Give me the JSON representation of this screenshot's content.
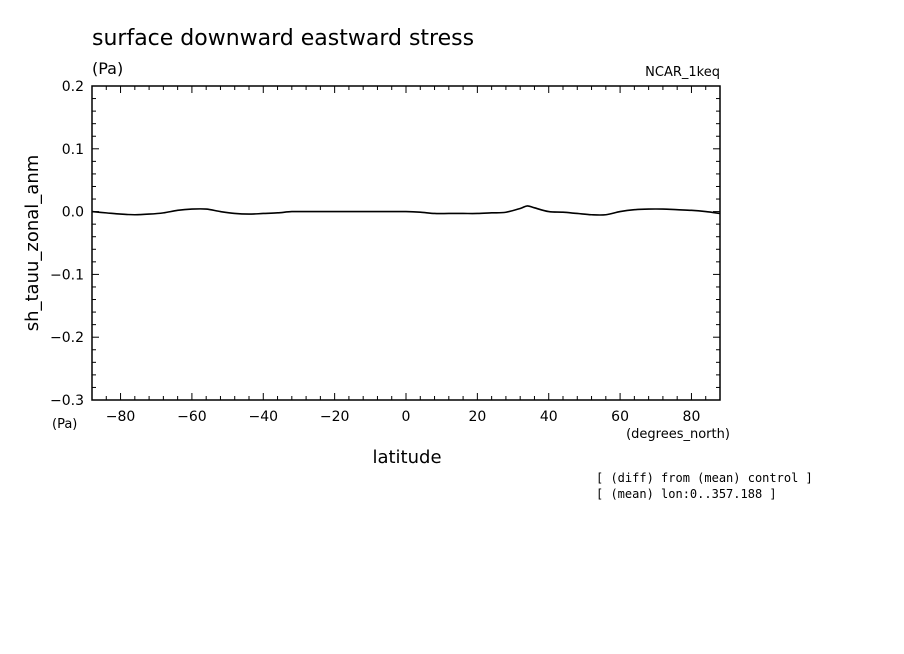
{
  "chart_data": {
    "type": "line",
    "title": "surface downward eastward stress",
    "title_units": "(Pa)",
    "model_label": "NCAR_1keq",
    "ylabel": "sh_tauu_zonal_anm",
    "ylabel_units": "(Pa)",
    "xlabel": "latitude",
    "xlabel_units": "(degrees_north)",
    "xlim": [
      -88,
      88
    ],
    "ylim": [
      -0.3,
      0.2
    ],
    "xticks": [
      -80,
      -60,
      -40,
      -20,
      0,
      20,
      40,
      60,
      80
    ],
    "xtick_labels": [
      "−80",
      "−60",
      "−40",
      "−20",
      "0",
      "20",
      "40",
      "60",
      "80"
    ],
    "yticks": [
      0.2,
      0.1,
      0.0,
      -0.1,
      -0.2,
      -0.3
    ],
    "ytick_labels": [
      "0.2",
      "0.1",
      "0.0",
      "−0.1",
      "−0.2",
      "−0.3"
    ],
    "grid": false,
    "series": [
      {
        "x": [
          -88,
          -84,
          -80,
          -76,
          -72,
          -68,
          -64,
          -60,
          -56,
          -52,
          -48,
          -44,
          -40,
          -36,
          -32,
          -28,
          -24,
          -20,
          -16,
          -12,
          -8,
          -4,
          0,
          4,
          8,
          12,
          16,
          20,
          24,
          28,
          32,
          34,
          36,
          40,
          44,
          48,
          52,
          56,
          60,
          64,
          68,
          72,
          76,
          80,
          84,
          88
        ],
        "y": [
          0.0,
          -0.002,
          -0.004,
          -0.005,
          -0.004,
          -0.002,
          0.002,
          0.004,
          0.004,
          0.0,
          -0.003,
          -0.004,
          -0.003,
          -0.002,
          0.0,
          0.0,
          0.0,
          0.0,
          0.0,
          0.0,
          0.0,
          0.0,
          0.0,
          -0.001,
          -0.003,
          -0.003,
          -0.003,
          -0.003,
          -0.002,
          -0.001,
          0.005,
          0.009,
          0.006,
          0.0,
          -0.001,
          -0.003,
          -0.005,
          -0.005,
          0.0,
          0.003,
          0.004,
          0.004,
          0.003,
          0.002,
          0.0,
          -0.003
        ]
      }
    ],
    "notes": [
      "[ (diff) from (mean) control ]",
      "[ (mean) lon:0..357.188 ]"
    ]
  }
}
